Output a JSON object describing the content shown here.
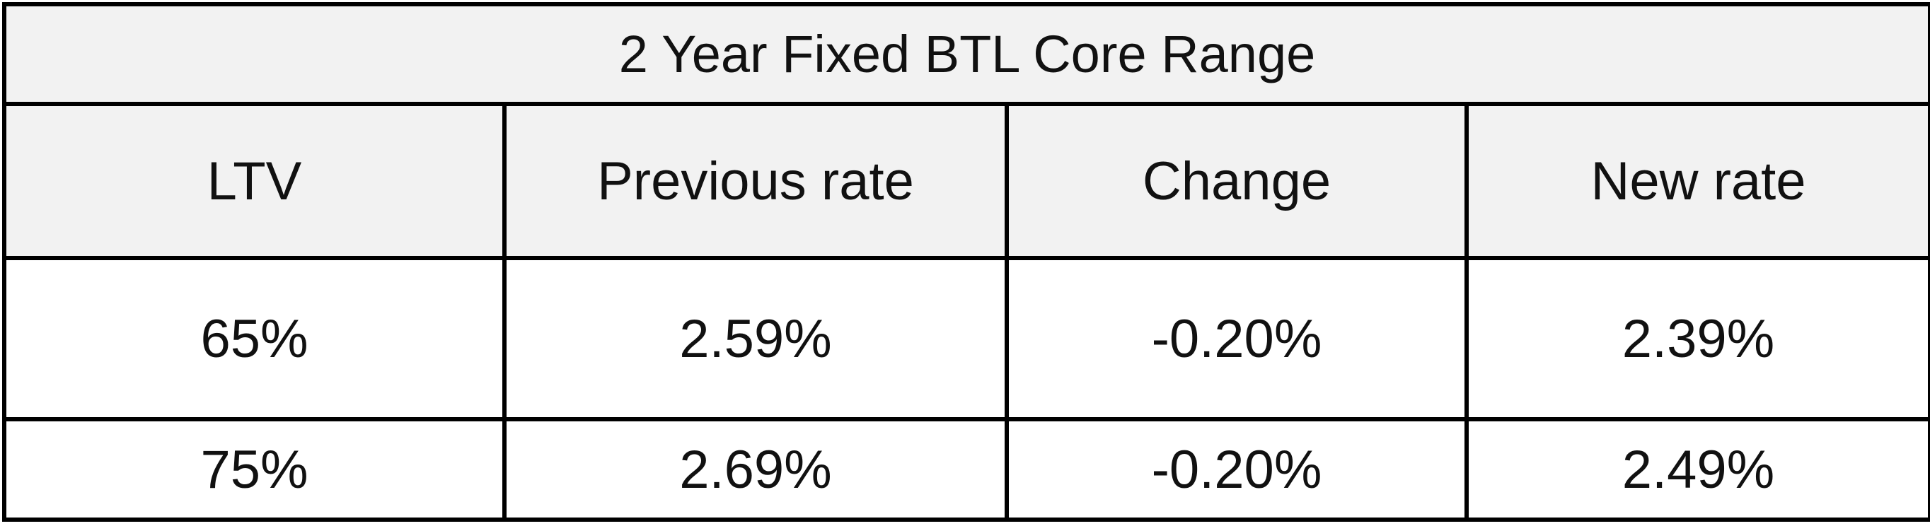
{
  "table": {
    "title": "2 Year Fixed BTL Core Range",
    "headers": [
      "LTV",
      "Previous rate",
      "Change",
      "New rate"
    ],
    "rows": [
      [
        "65%",
        "2.59%",
        "-0.20%",
        "2.39%"
      ],
      [
        "75%",
        "2.69%",
        "-0.20%",
        "2.49%"
      ]
    ]
  }
}
